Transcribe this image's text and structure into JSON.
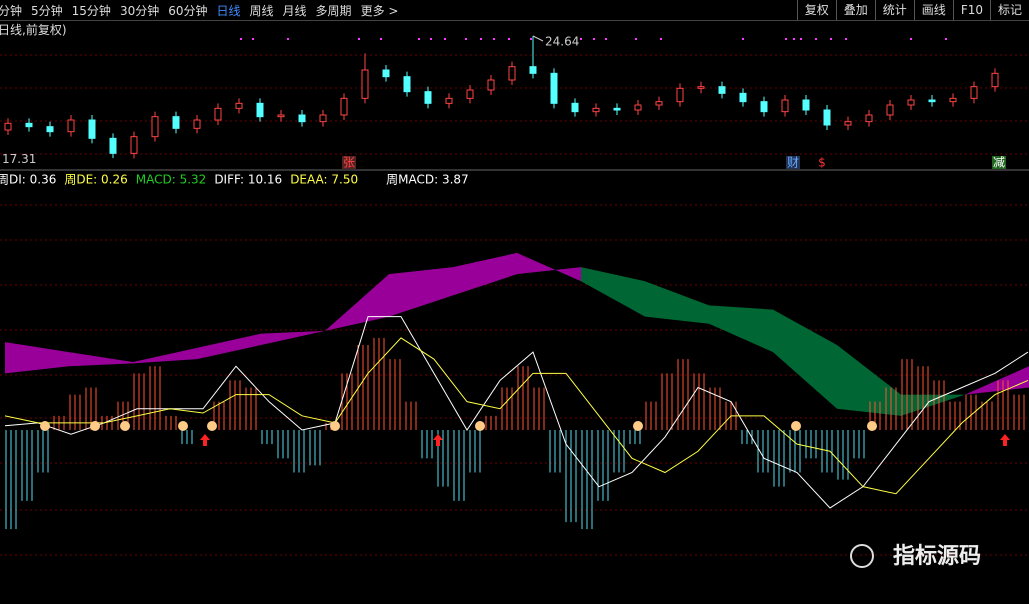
{
  "toolbar": {
    "tabs": [
      "分钟",
      "5分钟",
      "15分钟",
      "30分钟",
      "60分钟",
      "日线",
      "周线",
      "月线",
      "多周期",
      "更多 >"
    ],
    "active_tab": 5,
    "buttons": [
      "复权",
      "叠加",
      "统计",
      "画线",
      "F10",
      "标记"
    ]
  },
  "subheader": "日线,前复权)",
  "price_annotations": {
    "high": "24.64",
    "low": "17.31"
  },
  "event_markers": [
    "张",
    "财",
    "$",
    "减"
  ],
  "indicator_legend": [
    {
      "text": "周DI: 0.36",
      "color": "#ffffff"
    },
    {
      "text": "周DE: 0.26",
      "color": "#ffff44"
    },
    {
      "text": "MACD: 5.32",
      "color": "#22cc22"
    },
    {
      "text": "DIFF: 10.16",
      "color": "#ffffff"
    },
    {
      "text": "DEAA: 7.50",
      "color": "#ffff44"
    },
    {
      "text": "周MACD: 3.87",
      "color": "#ffffff"
    }
  ],
  "watermark": "指标源码",
  "chart_data": [
    {
      "type": "candlestick",
      "ylim": [
        16.6,
        25.6
      ],
      "up_color": "#ff4444",
      "down_color": "#54ffff",
      "open": [
        19.0,
        19.4,
        19.2,
        18.9,
        19.6,
        18.5,
        17.6,
        18.6,
        19.8,
        19.1,
        19.6,
        20.3,
        20.6,
        19.8,
        19.9,
        19.5,
        19.9,
        20.9,
        22.6,
        22.2,
        21.3,
        20.6,
        20.9,
        21.4,
        22.0,
        22.8,
        22.4,
        20.6,
        20.1,
        20.3,
        20.2,
        20.5,
        20.7,
        21.5,
        21.6,
        21.2,
        20.7,
        20.1,
        20.8,
        20.2,
        19.3,
        19.5,
        19.9,
        20.5,
        20.8,
        20.7,
        20.9,
        21.6
      ],
      "close": [
        19.4,
        19.2,
        18.9,
        19.6,
        18.5,
        17.6,
        18.6,
        19.8,
        19.1,
        19.6,
        20.3,
        20.6,
        19.8,
        19.9,
        19.5,
        19.9,
        20.9,
        22.6,
        22.2,
        21.3,
        20.6,
        20.9,
        21.4,
        22.0,
        22.8,
        22.4,
        20.6,
        20.1,
        20.3,
        20.2,
        20.5,
        20.7,
        21.5,
        21.6,
        21.2,
        20.7,
        20.1,
        20.8,
        20.2,
        19.3,
        19.5,
        19.9,
        20.5,
        20.8,
        20.7,
        20.9,
        21.6,
        22.4
      ],
      "high": [
        19.7,
        19.7,
        19.5,
        19.9,
        19.9,
        18.8,
        18.9,
        20.1,
        20.1,
        19.9,
        20.6,
        20.9,
        20.9,
        20.2,
        20.2,
        20.2,
        21.2,
        23.6,
        22.9,
        22.5,
        21.6,
        21.2,
        21.7,
        22.3,
        23.1,
        24.64,
        22.7,
        20.9,
        20.6,
        20.6,
        20.8,
        21.0,
        21.8,
        21.9,
        21.9,
        21.5,
        21.0,
        21.1,
        21.1,
        20.5,
        19.8,
        20.2,
        20.8,
        21.1,
        21.1,
        21.2,
        21.9,
        22.7
      ],
      "low": [
        18.7,
        18.9,
        18.6,
        18.6,
        18.2,
        17.31,
        17.3,
        18.3,
        18.8,
        18.8,
        19.3,
        20.0,
        19.5,
        19.5,
        19.2,
        19.2,
        19.6,
        20.6,
        21.9,
        21.0,
        20.3,
        20.3,
        20.6,
        21.1,
        21.7,
        22.1,
        20.3,
        19.8,
        19.8,
        19.9,
        19.9,
        20.2,
        20.4,
        21.2,
        20.9,
        20.4,
        19.8,
        19.8,
        19.9,
        19.0,
        19.0,
        19.2,
        19.6,
        20.2,
        20.4,
        20.4,
        20.6,
        21.3
      ]
    },
    {
      "type": "macd",
      "ylim": [
        -12,
        18
      ],
      "histogram": {
        "up_color": "#ff5533",
        "down_color": "#55ddee",
        "values": [
          -7,
          -5,
          -3,
          1,
          2.5,
          3,
          1,
          2,
          4,
          4.5,
          1,
          -1,
          0,
          2,
          3.5,
          3,
          -1,
          -2,
          -3,
          -2.5,
          0.5,
          4,
          6,
          6.5,
          5,
          2,
          -2,
          -4,
          -5,
          -3,
          1,
          3,
          4.5,
          3,
          -3,
          -6.5,
          -7,
          -5,
          -3,
          -1,
          2,
          4,
          5,
          4,
          3,
          2,
          -1,
          -3,
          -4,
          -3,
          -2,
          -3,
          -3.5,
          -2,
          2,
          3,
          5,
          4.5,
          3.5,
          2,
          2.5,
          2,
          3.5,
          2.5
        ]
      },
      "series": [
        {
          "name": "DIFF",
          "color": "#ffffff",
          "values": [
            0.3,
            0.5,
            -0.3,
            0.5,
            1.5,
            1.5,
            1.5,
            4.5,
            2,
            0,
            0.5,
            8,
            8,
            4,
            0,
            3.5,
            5.5,
            -1,
            -4,
            -3,
            -0.5,
            3,
            2,
            -2,
            -3,
            -5.5,
            -4,
            -1,
            2,
            3,
            4,
            5.5
          ]
        },
        {
          "name": "DEA",
          "color": "#ffff44",
          "values": [
            1,
            0.5,
            0.5,
            0.5,
            1,
            1.5,
            1.2,
            2.5,
            2.5,
            1,
            0.5,
            4,
            6.5,
            5,
            2,
            1.5,
            4,
            4,
            1,
            -2,
            -3,
            -1.5,
            1,
            1,
            -1,
            -1.5,
            -4,
            -4.5,
            -2,
            0.5,
            2.5,
            3.5
          ]
        }
      ],
      "band": {
        "up_color": "#990099",
        "down_color": "#006633",
        "fast": [
          6.2,
          5.5,
          4.8,
          5.8,
          6.8,
          7.0,
          11.0,
          11.5,
          12.5,
          10.5,
          8.0,
          7.5,
          5.5,
          1.5,
          1.0,
          2.5,
          4.5
        ],
        "slow": [
          4.0,
          4.5,
          4.7,
          5.0,
          6.0,
          7.0,
          8.0,
          9.5,
          11.0,
          11.5,
          10.5,
          8.8,
          8.5,
          6.0,
          2.5,
          2.5,
          3.0
        ]
      }
    }
  ]
}
